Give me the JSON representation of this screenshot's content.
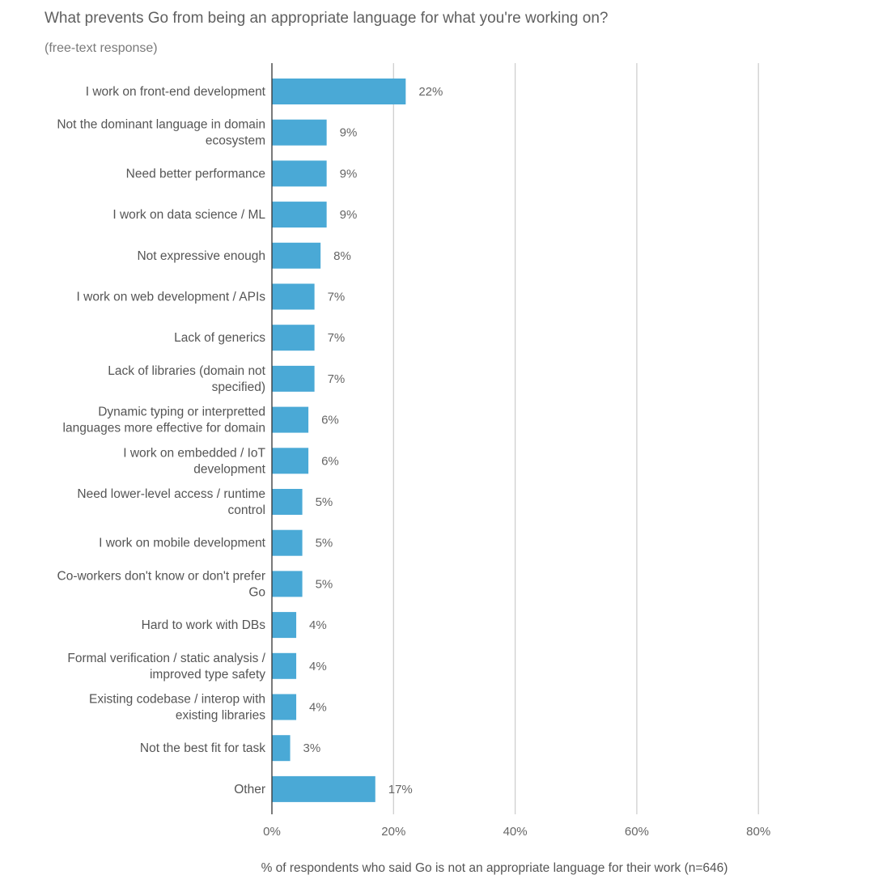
{
  "chart_data": {
    "type": "bar",
    "orientation": "horizontal",
    "title": "What prevents Go from being an appropriate language for what you're working on?",
    "subtitle": "(free-text response)",
    "xlabel": "% of respondents who said Go is not an appropriate language for their work (n=646)",
    "ylabel": "",
    "xlim": [
      0,
      80
    ],
    "xticks": [
      0,
      20,
      40,
      60,
      80
    ],
    "xtick_labels": [
      "0%",
      "20%",
      "40%",
      "60%",
      "80%"
    ],
    "grid": "vertical",
    "bar_color": "#4aa9d6",
    "categories": [
      [
        "I work on front-end development"
      ],
      [
        "Not the dominant language in domain",
        "ecosystem"
      ],
      [
        "Need better performance"
      ],
      [
        "I work on data science / ML"
      ],
      [
        "Not expressive enough"
      ],
      [
        "I work on web development / APIs"
      ],
      [
        "Lack of generics"
      ],
      [
        "Lack of libraries (domain not",
        "specified)"
      ],
      [
        "Dynamic typing or interpretted",
        "languages more effective for domain"
      ],
      [
        "I work on embedded / IoT",
        "development"
      ],
      [
        "Need lower-level access / runtime",
        "control"
      ],
      [
        "I work on mobile development"
      ],
      [
        "Co-workers don't know or don't prefer",
        "Go"
      ],
      [
        "Hard to work with DBs"
      ],
      [
        "Formal verification / static analysis /",
        "improved type safety"
      ],
      [
        "Existing codebase / interop with",
        "existing libraries"
      ],
      [
        "Not the best fit for task"
      ],
      [
        "Other"
      ]
    ],
    "values": [
      22,
      9,
      9,
      9,
      8,
      7,
      7,
      7,
      6,
      6,
      5,
      5,
      5,
      4,
      4,
      4,
      3,
      17
    ],
    "value_labels": [
      "22%",
      "9%",
      "9%",
      "9%",
      "8%",
      "7%",
      "7%",
      "7%",
      "6%",
      "6%",
      "5%",
      "5%",
      "5%",
      "4%",
      "4%",
      "4%",
      "3%",
      "17%"
    ]
  }
}
